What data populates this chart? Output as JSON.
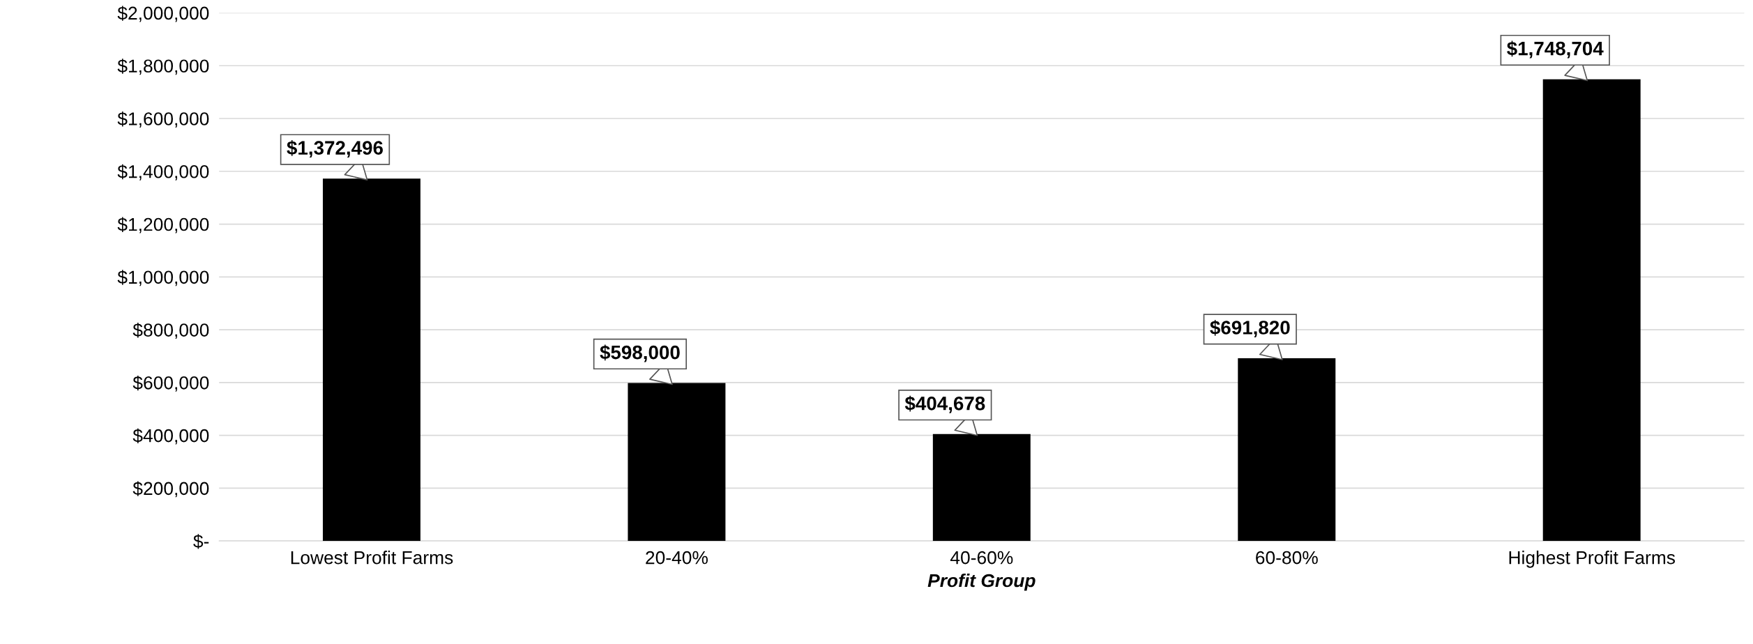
{
  "chart_data": {
    "type": "bar",
    "xlabel": "Profit Group",
    "categories": [
      "Lowest Profit Farms",
      "20-40%",
      "40-60%",
      "60-80%",
      "Highest Profit Farms"
    ],
    "values": [
      1372496,
      598000,
      404678,
      691820,
      1748704
    ],
    "value_labels": [
      "$1,372,496",
      "$598,000",
      "$404,678",
      "$691,820",
      "$1,748,704"
    ],
    "color": "#000000",
    "ylim": [
      0,
      2000000
    ],
    "yticks": [
      {
        "value": 0,
        "label": "$-"
      },
      {
        "value": 200000,
        "label": "$200,000"
      },
      {
        "value": 400000,
        "label": "$400,000"
      },
      {
        "value": 600000,
        "label": "$600,000"
      },
      {
        "value": 800000,
        "label": "$800,000"
      },
      {
        "value": 1000000,
        "label": "$1,000,000"
      },
      {
        "value": 1200000,
        "label": "$1,200,000"
      },
      {
        "value": 1400000,
        "label": "$1,400,000"
      },
      {
        "value": 1600000,
        "label": "$1,600,000"
      },
      {
        "value": 1800000,
        "label": "$1,800,000"
      },
      {
        "value": 2000000,
        "label": "$2,000,000"
      }
    ],
    "grid": "y"
  }
}
